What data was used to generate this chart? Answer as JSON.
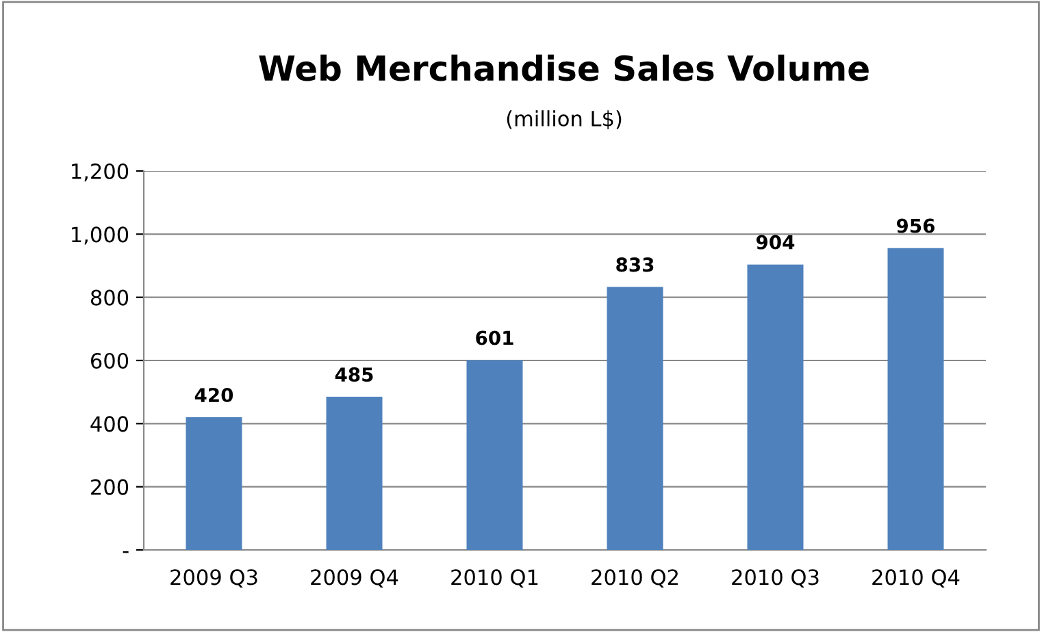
{
  "chart_data": {
    "type": "bar",
    "title": "Web Merchandise Sales Volume",
    "subtitle": "(million L$)",
    "categories": [
      "2009 Q3",
      "2009 Q4",
      "2010 Q1",
      "2010 Q2",
      "2010 Q3",
      "2010 Q4"
    ],
    "values": [
      420,
      485,
      601,
      833,
      904,
      956
    ],
    "color": "#4f81bd",
    "ylim": [
      0,
      1200
    ],
    "yticks": [
      {
        "value": 0,
        "label": "-"
      },
      {
        "value": 200,
        "label": "200"
      },
      {
        "value": 400,
        "label": "400"
      },
      {
        "value": 600,
        "label": "600"
      },
      {
        "value": 800,
        "label": "800"
      },
      {
        "value": 1000,
        "label": "1,000"
      },
      {
        "value": 1200,
        "label": "1,200"
      }
    ],
    "grid": "y",
    "data_labels": true,
    "legend": false
  }
}
